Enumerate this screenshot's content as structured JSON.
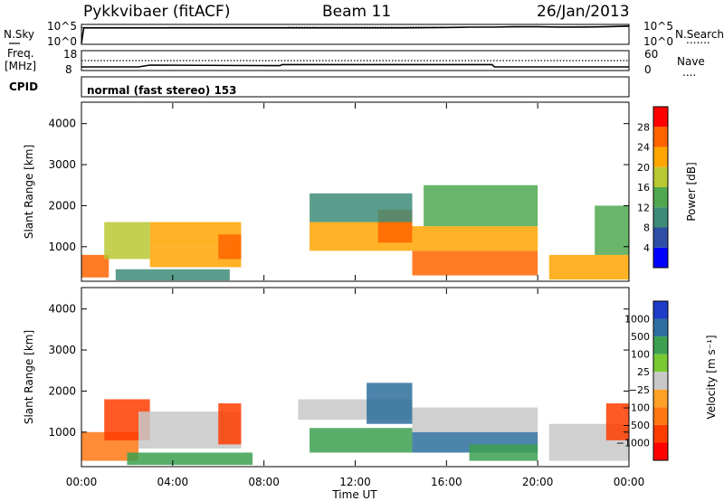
{
  "header": {
    "station": "Pykkvibaer (fitACF)",
    "beam": "Beam 11",
    "date": "26/Jan/2013"
  },
  "noise_panel": {
    "left_label": "N.Sky",
    "right_label": "N.Search",
    "right_dots": ".......",
    "left_ticks": [
      "10^5",
      "10^0"
    ],
    "right_ticks": [
      "10^5",
      "10^0"
    ]
  },
  "freq_panel": {
    "left_label_line1": "Freq.",
    "left_label_line2": "[MHz]",
    "right_label": "Nave",
    "right_dots": "....",
    "left_ticks": [
      "18",
      "8"
    ],
    "right_ticks": [
      "60",
      "0"
    ]
  },
  "cpid": {
    "label": "CPID",
    "text": "normal (fast stereo) 153"
  },
  "x_axis": {
    "label": "Time UT",
    "ticks": [
      "00:00",
      "04:00",
      "08:00",
      "12:00",
      "16:00",
      "20:00",
      "00:00"
    ]
  },
  "power_panel": {
    "ylabel": "Slant Range [km]",
    "yticks": [
      "1000",
      "2000",
      "3000",
      "4000"
    ],
    "colorbar_label": "Power [dB]",
    "colorbar_ticks": [
      "4",
      "8",
      "12",
      "16",
      "20",
      "24",
      "28"
    ],
    "colors": [
      "#0000ff",
      "#2e4fa5",
      "#3d8c78",
      "#4fa84f",
      "#b8c832",
      "#ffa500",
      "#ff6400",
      "#ff0000"
    ]
  },
  "velocity_panel": {
    "ylabel": "Slant Range [km]",
    "yticks": [
      "1000",
      "2000",
      "3000",
      "4000"
    ],
    "colorbar_label": "Velocity [m s⁻¹]",
    "colorbar_ticks": [
      "1000",
      "500",
      "100",
      "25",
      "−25",
      "−100",
      "−500",
      "−1000"
    ],
    "colors": [
      "#1e3cc8",
      "#2e6e9e",
      "#3ca050",
      "#78c832",
      "#c8c8c8",
      "#ffa028",
      "#ff7814",
      "#ff3c00",
      "#ff0000"
    ]
  },
  "chart_data": [
    {
      "type": "line",
      "title": "",
      "x_unit_ticks": [
        "00:00",
        "04:00",
        "08:00",
        "12:00",
        "16:00",
        "20:00",
        "00:00"
      ],
      "series": [
        {
          "name": "N.Sky",
          "x_hours": [
            0,
            0.1,
            2,
            6,
            10,
            14,
            16,
            17,
            18,
            19,
            20,
            21,
            22,
            23,
            24
          ],
          "values_log10": [
            0,
            4.3,
            4.3,
            4.3,
            4.3,
            4.3,
            4.4,
            4.5,
            4.5,
            4.6,
            4.6,
            4.5,
            4.5,
            4.6,
            4.8
          ]
        },
        {
          "name": "N.Search",
          "x_hours": [
            0,
            17,
            20,
            24
          ],
          "values_log10": [
            4.4,
            4.5,
            4.6,
            4.7
          ]
        }
      ],
      "ylim_log10": [
        0,
        5
      ]
    },
    {
      "type": "line",
      "series": [
        {
          "name": "Freq.",
          "x_hours": [
            0,
            2.5,
            3,
            8.7,
            8.8,
            18,
            18.1,
            24
          ],
          "values": [
            9.5,
            9.5,
            10.5,
            10.2,
            10.8,
            10.8,
            9.5,
            9.5
          ]
        },
        {
          "name": "Nave",
          "x_hours": [
            0,
            24
          ],
          "values": [
            13,
            13
          ]
        }
      ],
      "ylim": [
        8,
        18
      ]
    },
    {
      "type": "heatmap",
      "quantity": "Power",
      "unit": "dB",
      "ylabel": "Slant Range [km]",
      "xlabel": "Time UT",
      "ylim_km": [
        180,
        4500
      ],
      "color_range": [
        0,
        32
      ],
      "regions": [
        {
          "t": [
            0.0,
            1.2
          ],
          "r": [
            250,
            800
          ],
          "value": 24
        },
        {
          "t": [
            1.0,
            3.0
          ],
          "r": [
            700,
            1600
          ],
          "value": 16
        },
        {
          "t": [
            3.0,
            7.0
          ],
          "r": [
            500,
            1000
          ],
          "value": 22
        },
        {
          "t": [
            3.0,
            7.0
          ],
          "r": [
            1000,
            1600
          ],
          "value": 20
        },
        {
          "t": [
            6.0,
            7.0
          ],
          "r": [
            700,
            1300
          ],
          "value": 27
        },
        {
          "t": [
            1.5,
            6.5
          ],
          "r": [
            180,
            450
          ],
          "value": 10
        },
        {
          "t": [
            10.0,
            14.5
          ],
          "r": [
            900,
            1600
          ],
          "value": 22
        },
        {
          "t": [
            13.0,
            14.5
          ],
          "r": [
            1100,
            1900
          ],
          "value": 27
        },
        {
          "t": [
            10.0,
            14.5
          ],
          "r": [
            1600,
            2300
          ],
          "value": 11
        },
        {
          "t": [
            14.5,
            20.0
          ],
          "r": [
            300,
            900
          ],
          "value": 24
        },
        {
          "t": [
            14.5,
            20.0
          ],
          "r": [
            900,
            1500
          ],
          "value": 20
        },
        {
          "t": [
            15.0,
            20.0
          ],
          "r": [
            1500,
            2500
          ],
          "value": 12
        },
        {
          "t": [
            20.5,
            24.0
          ],
          "r": [
            200,
            800
          ],
          "value": 23
        },
        {
          "t": [
            22.5,
            24.0
          ],
          "r": [
            800,
            2000
          ],
          "value": 13
        }
      ]
    },
    {
      "type": "heatmap",
      "quantity": "Velocity",
      "unit": "m s-1",
      "ylabel": "Slant Range [km]",
      "xlabel": "Time UT",
      "ylim_km": [
        180,
        4500
      ],
      "color_range": [
        -1000,
        1000
      ],
      "regions": [
        {
          "t": [
            0.0,
            2.5
          ],
          "r": [
            300,
            1000
          ],
          "value": -100
        },
        {
          "t": [
            1.0,
            3.0
          ],
          "r": [
            800,
            1800
          ],
          "value": -500
        },
        {
          "t": [
            2.5,
            7.0
          ],
          "r": [
            600,
            1500
          ],
          "value": 0
        },
        {
          "t": [
            6.0,
            7.0
          ],
          "r": [
            700,
            1700
          ],
          "value": -500
        },
        {
          "t": [
            2.0,
            7.5
          ],
          "r": [
            200,
            500
          ],
          "value": 100
        },
        {
          "t": [
            9.5,
            14.5
          ],
          "r": [
            1300,
            1800
          ],
          "value": 0
        },
        {
          "t": [
            10.0,
            14.5
          ],
          "r": [
            500,
            1100
          ],
          "value": 100
        },
        {
          "t": [
            12.5,
            14.5
          ],
          "r": [
            1200,
            2200
          ],
          "value": 500
        },
        {
          "t": [
            14.5,
            20.0
          ],
          "r": [
            500,
            1000
          ],
          "value": 500
        },
        {
          "t": [
            14.5,
            20.0
          ],
          "r": [
            1000,
            1600
          ],
          "value": 0
        },
        {
          "t": [
            17.0,
            20.0
          ],
          "r": [
            300,
            700
          ],
          "value": 100
        },
        {
          "t": [
            20.5,
            24.0
          ],
          "r": [
            300,
            1200
          ],
          "value": 0
        },
        {
          "t": [
            23.0,
            24.0
          ],
          "r": [
            800,
            1700
          ],
          "value": -500
        }
      ]
    }
  ]
}
